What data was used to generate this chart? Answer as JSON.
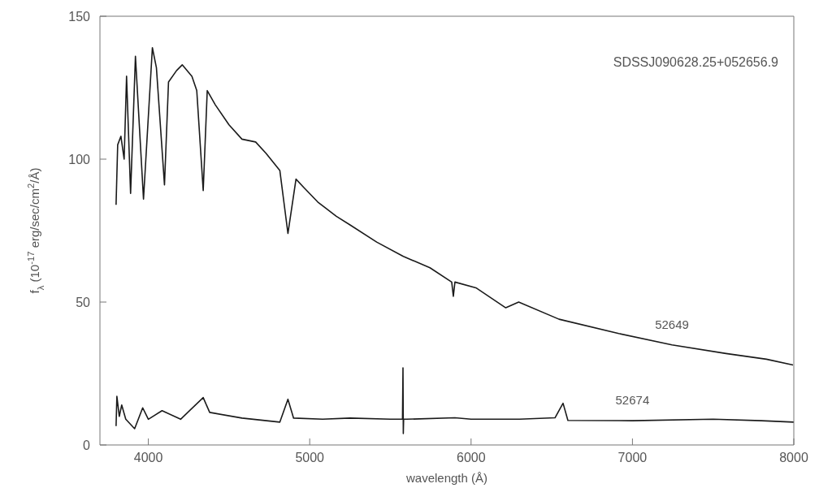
{
  "chart_data": {
    "type": "line",
    "xlabel": "wavelength (Å)",
    "ylabel": "f$_{λ}$ (10$^{-17}$ erg/sec/cm$^{2}$/Å)",
    "annotations": [
      "SDSSJ090628.25+052656.9"
    ],
    "xlim": [
      3700,
      8000
    ],
    "xticks": [
      4000,
      5000,
      6000,
      7000,
      8000
    ],
    "ylim": [
      0,
      150
    ],
    "yticks": [
      0,
      50,
      100,
      150
    ],
    "marker": "none",
    "line_style": "solid",
    "series": [
      {
        "name": "52649",
        "color": "#1a1a1a",
        "x": [
          3800,
          3810,
          3830,
          3850,
          3865,
          3890,
          3920,
          3970,
          4025,
          4050,
          4100,
          4125,
          4175,
          4210,
          4270,
          4300,
          4340,
          4365,
          4415,
          4500,
          4580,
          4665,
          4730,
          4815,
          4865,
          4915,
          4965,
          5050,
          5165,
          5250,
          5415,
          5580,
          5745,
          5880,
          5890,
          5900,
          6030,
          6215,
          6295,
          6545,
          6915,
          7245,
          7580,
          7830,
          7995
        ],
        "values": [
          84,
          105,
          108,
          100,
          129,
          88,
          136,
          86,
          139,
          132,
          91,
          127,
          131,
          133,
          129,
          124,
          89,
          124,
          119,
          112,
          107,
          106,
          102,
          96,
          74,
          93,
          90,
          85,
          80,
          77,
          71,
          66,
          62,
          57,
          52,
          57,
          55,
          48,
          50,
          44,
          39,
          35,
          32,
          30,
          28
        ]
      },
      {
        "name": "52674",
        "color": "#1a1a1a",
        "x": [
          3800,
          3805,
          3820,
          3835,
          3860,
          3915,
          3965,
          4000,
          4085,
          4200,
          4340,
          4380,
          4580,
          4815,
          4865,
          4900,
          5080,
          5250,
          5500,
          5575,
          5578,
          5580,
          5582,
          5600,
          5900,
          6000,
          6300,
          6520,
          6570,
          6600,
          7000,
          7500,
          7800,
          8000
        ],
        "values": [
          6.6,
          17,
          10,
          14,
          9,
          5.7,
          13,
          9,
          12,
          9,
          16.6,
          11.4,
          9.4,
          8,
          16,
          9.4,
          9,
          9.4,
          9,
          9,
          27,
          4,
          9,
          9,
          9.5,
          9,
          9,
          9.5,
          14.6,
          8.6,
          8.5,
          9,
          8.5,
          8
        ]
      }
    ]
  }
}
